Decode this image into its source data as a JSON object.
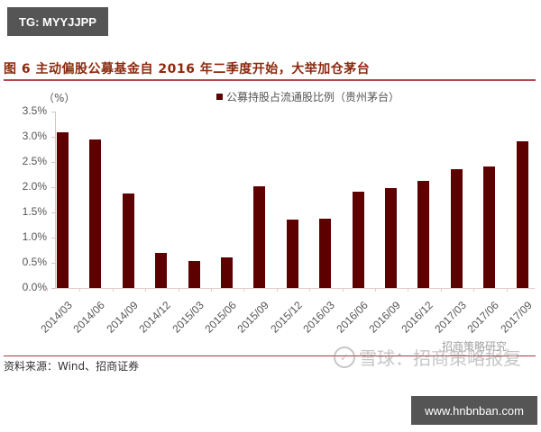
{
  "badges": {
    "top_left": "TG: MYYJJPP",
    "bottom_right": "www.hnbnban.com"
  },
  "figure": {
    "title": "图 6  主动偏股公募基金自 2016 年二季度开始，大举加仓茅台",
    "unit": "（%）",
    "legend": "公募持股占流通股比例（贵州茅台）",
    "source": "资料来源：Wind、招商证券",
    "watermark": "雪球：招商策略报复",
    "watermark_sub": "招商策略研究"
  },
  "colors": {
    "bar": "#5c0000",
    "title": "#8b2a0f",
    "rule": "#b3484e"
  },
  "yticks": [
    "3.5%",
    "3.0%",
    "2.5%",
    "2.0%",
    "1.5%",
    "1.0%",
    "0.5%",
    "0.0%"
  ],
  "chart_data": {
    "type": "bar",
    "title": "主动偏股公募基金自 2016 年二季度开始，大举加仓茅台",
    "xlabel": "",
    "ylabel": "（%）",
    "ylim": [
      0,
      3.5
    ],
    "yticks": [
      0.0,
      0.5,
      1.0,
      1.5,
      2.0,
      2.5,
      3.0,
      3.5
    ],
    "grid": false,
    "legend_position": "top",
    "categories": [
      "2014/03",
      "2014/06",
      "2014/09",
      "2014/12",
      "2015/03",
      "2015/06",
      "2015/09",
      "2015/12",
      "2016/03",
      "2016/06",
      "2016/09",
      "2016/12",
      "2017/03",
      "2017/06",
      "2017/09"
    ],
    "series": [
      {
        "name": "公募持股占流通股比例（贵州茅台）",
        "values": [
          3.09,
          2.95,
          1.88,
          0.7,
          0.54,
          0.61,
          2.02,
          1.36,
          1.38,
          1.91,
          1.98,
          2.12,
          2.36,
          2.41,
          2.91
        ]
      }
    ]
  }
}
